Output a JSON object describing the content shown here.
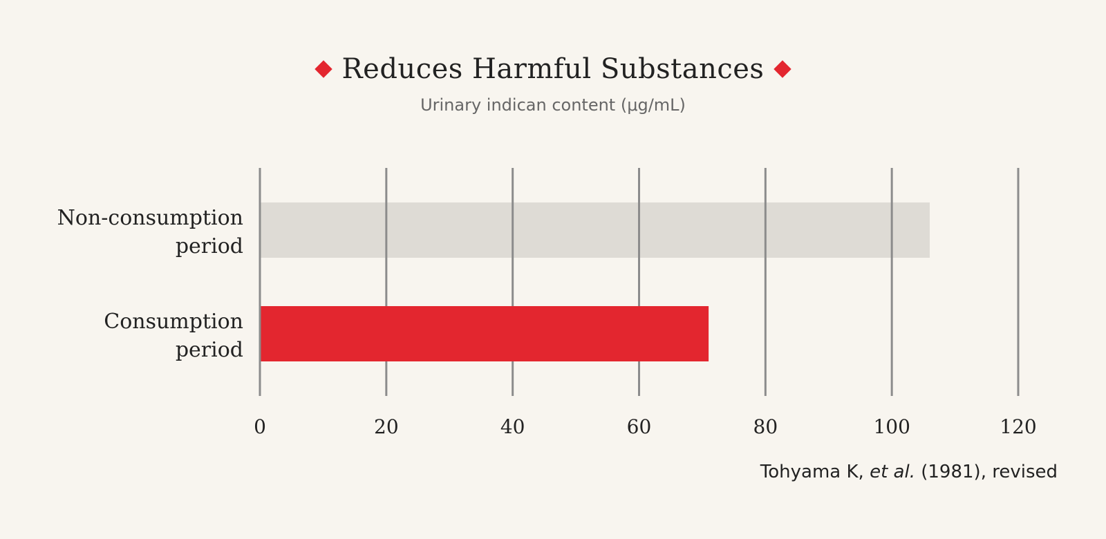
{
  "chart_data": {
    "type": "bar",
    "orientation": "horizontal",
    "title": "Reduces Harmful Substances",
    "subtitle": "Urinary indican content (μg/mL)",
    "categories": [
      "Non-consumption period",
      "Consumption period"
    ],
    "values": [
      106,
      71
    ],
    "bar_colors": [
      "#dedbd5",
      "#e3262f"
    ],
    "xlim": [
      0,
      120
    ],
    "xticks": [
      0,
      20,
      40,
      60,
      80,
      100,
      120
    ],
    "grid": true
  },
  "colors": {
    "accent": "#e3262f",
    "background": "#f8f5ef",
    "gridline": "#8c8c8c"
  },
  "source": {
    "author": "Tohyama K,",
    "etal": "et al.",
    "rest": "(1981), revised"
  }
}
